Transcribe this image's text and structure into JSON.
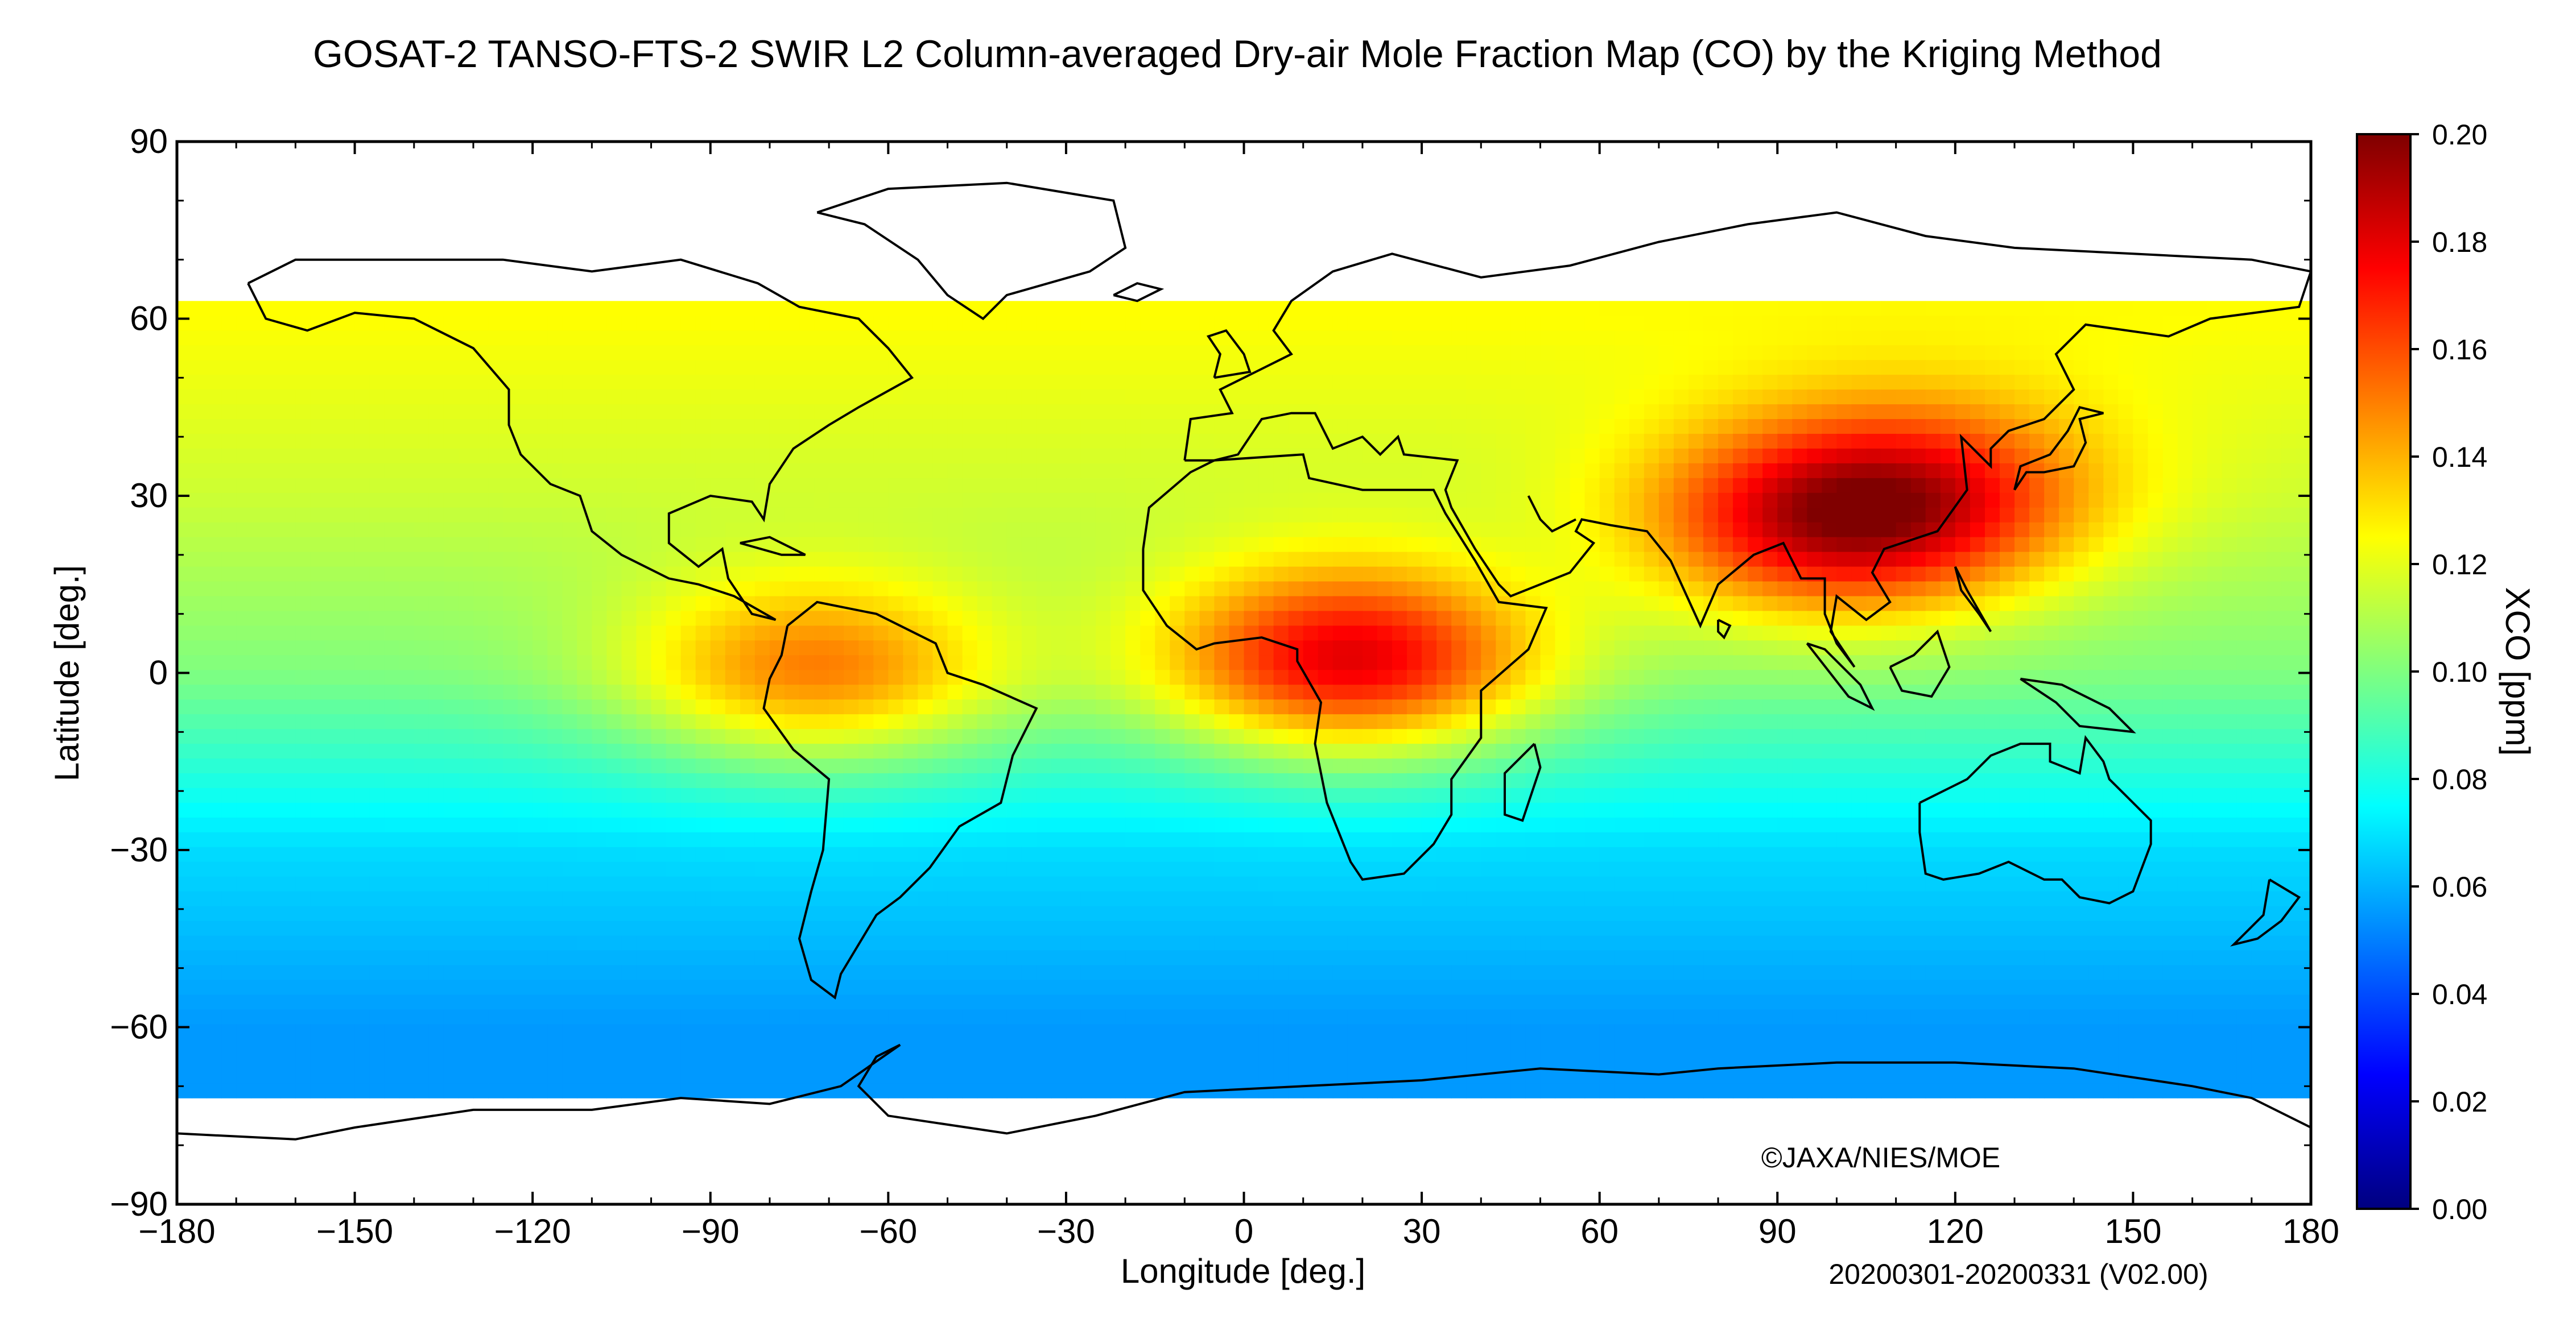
{
  "title": "GOSAT-2 TANSO-FTS-2 SWIR L2 Column-averaged Dry-air Mole Fraction Map (CO) by the Kriging Method",
  "map": {
    "x_label": "Longitude [deg.]",
    "y_label": "Latitude [deg.]",
    "x_ticks": [
      "−180",
      "−150",
      "−120",
      "−90",
      "−60",
      "−30",
      "0",
      "30",
      "60",
      "90",
      "120",
      "150",
      "180"
    ],
    "y_ticks": [
      "90",
      "60",
      "30",
      "0",
      "−30",
      "−60",
      "−90"
    ],
    "lon_range": [
      -180,
      180
    ],
    "lat_range": [
      -90,
      90
    ],
    "grid_resolution_deg": 2.5,
    "data_lat_range": [
      -72,
      63
    ],
    "copyright": "©JAXA/NIES/MOE",
    "period": "20200301-20200331 (V02.00)"
  },
  "colorbar": {
    "label": "XCO [ppm]",
    "ticks": [
      "0.20",
      "0.18",
      "0.16",
      "0.14",
      "0.12",
      "0.10",
      "0.08",
      "0.06",
      "0.04",
      "0.02",
      "0.00"
    ],
    "range": [
      0.0,
      0.2
    ],
    "colormap": "jet",
    "colors": [
      "#00007f",
      "#0000ff",
      "#007fff",
      "#00ffff",
      "#7fff7f",
      "#ffff00",
      "#ff7f00",
      "#ff0000",
      "#7f0000"
    ]
  },
  "chart_data": {
    "type": "heatmap",
    "variable": "XCO [ppm]",
    "hotspots": [
      {
        "region": "Central Africa",
        "lon": 18,
        "lat": 2,
        "value": 0.18
      },
      {
        "region": "Southeast Asia",
        "lon": 100,
        "lat": 25,
        "value": 0.18
      },
      {
        "region": "Northern South America",
        "lon": -72,
        "lat": 0,
        "value": 0.15
      },
      {
        "region": "Eastern China",
        "lon": 115,
        "lat": 32,
        "value": 0.15
      }
    ],
    "background_levels": [
      {
        "lat": 60,
        "value": 0.125
      },
      {
        "lat": 30,
        "value": 0.115
      },
      {
        "lat": 0,
        "value": 0.1
      },
      {
        "lat": -30,
        "value": 0.068
      },
      {
        "lat": -60,
        "value": 0.055
      }
    ]
  }
}
